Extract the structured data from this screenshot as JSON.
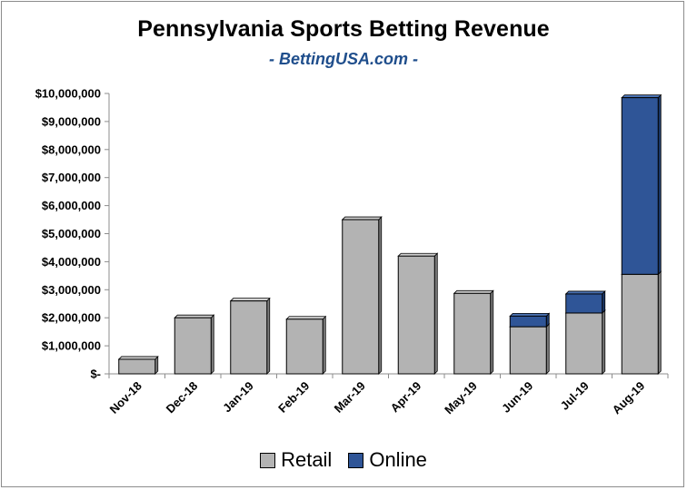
{
  "chart_data": {
    "type": "bar",
    "stacked": true,
    "title": "Pennsylvania Sports Betting Revenue",
    "subtitle": "- BettingUSA.com -",
    "categories": [
      "Nov-18",
      "Dec-18",
      "Jan-19",
      "Feb-19",
      "Mar-19",
      "Apr-19",
      "May-19",
      "Jun-19",
      "Jul-19",
      "Aug-19"
    ],
    "series": [
      {
        "name": "Retail",
        "color": "#b3b3b3",
        "values": [
          520000,
          2000000,
          2600000,
          1950000,
          5500000,
          4200000,
          2870000,
          1680000,
          2170000,
          3550000
        ]
      },
      {
        "name": "Online",
        "color": "#2f5597",
        "values": [
          0,
          0,
          0,
          0,
          0,
          0,
          0,
          380000,
          680000,
          6300000
        ]
      }
    ],
    "ylim": [
      0,
      10000000
    ],
    "yticks": [
      "$-",
      "$1,000,000",
      "$2,000,000",
      "$3,000,000",
      "$4,000,000",
      "$5,000,000",
      "$6,000,000",
      "$7,000,000",
      "$8,000,000",
      "$9,000,000",
      "$10,000,000"
    ],
    "xlabel": "",
    "ylabel": "",
    "grid": false,
    "legend_position": "bottom"
  }
}
